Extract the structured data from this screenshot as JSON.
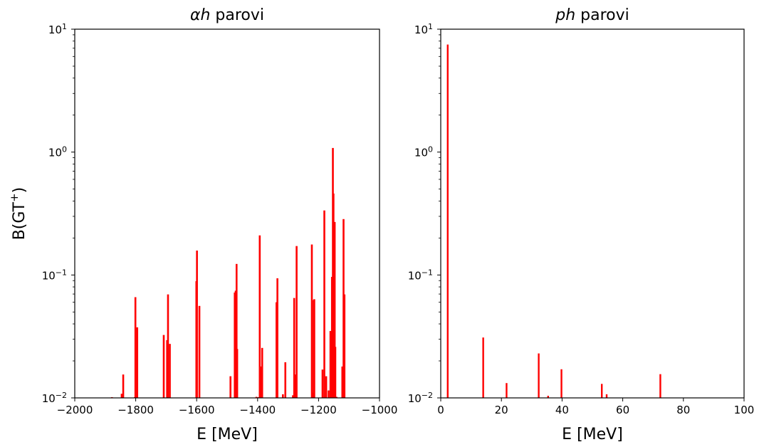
{
  "figure": {
    "ylabel": "B(GT$^+$)"
  },
  "chart_data": [
    {
      "type": "bar",
      "title_prefix": "αh",
      "title_suffix": " parovi",
      "xlabel": "E [MeV]",
      "ylabel": "B(GT$^+$)",
      "xlim": [
        -2000,
        -1000
      ],
      "ylim": [
        0.01,
        10
      ],
      "yscale": "log",
      "grid": false,
      "color": "#ff0000",
      "x_ticks": [
        -2000,
        -1800,
        -1600,
        -1400,
        -1200,
        -1000
      ],
      "x_tick_labels": [
        "−2000",
        "−1800",
        "−1600",
        "−1400",
        "−1200",
        "−1000"
      ],
      "y_ticks": [
        0.01,
        0.1,
        1,
        10
      ],
      "y_tick_labels": [
        {
          "base": "10",
          "exp": "−2"
        },
        {
          "base": "10",
          "exp": "−1"
        },
        {
          "base": "10",
          "exp": "0"
        },
        {
          "base": "10",
          "exp": "1"
        }
      ],
      "x": [
        -1878,
        -1846,
        -1841,
        -1803,
        -1801,
        -1795,
        -1708,
        -1697,
        -1694,
        -1688,
        -1601,
        -1599,
        -1591,
        -1489,
        -1475,
        -1472,
        -1469,
        -1467,
        -1404,
        -1397,
        -1393,
        -1389,
        -1385,
        -1338,
        -1335,
        -1317,
        -1309,
        -1284,
        -1280,
        -1277,
        -1272,
        -1222,
        -1218,
        -1216,
        -1214,
        -1187,
        -1181,
        -1175,
        -1167,
        -1161,
        -1159,
        -1156,
        -1153,
        -1151,
        -1149,
        -1147,
        -1145,
        -1141,
        -1122,
        -1118,
        -1115
      ],
      "values": [
        0.0101,
        0.0108,
        0.0155,
        0.0101,
        0.066,
        0.0375,
        0.0325,
        0.0295,
        0.0695,
        0.0275,
        0.089,
        0.158,
        0.056,
        0.015,
        0.072,
        0.0745,
        0.123,
        0.025,
        0.0102,
        0.01,
        0.21,
        0.018,
        0.0255,
        0.06,
        0.094,
        0.0107,
        0.0195,
        0.0105,
        0.065,
        0.0155,
        0.172,
        0.177,
        0.011,
        0.0625,
        0.0635,
        0.017,
        0.335,
        0.015,
        0.0115,
        0.035,
        0.0103,
        0.0965,
        1.08,
        0.46,
        0.1,
        0.27,
        0.026,
        0.0102,
        0.018,
        0.285,
        0.0695
      ]
    },
    {
      "type": "bar",
      "title_prefix": "ph",
      "title_suffix": " parovi",
      "xlabel": "E [MeV]",
      "xlim": [
        0,
        100
      ],
      "ylim": [
        0.01,
        10
      ],
      "yscale": "log",
      "grid": false,
      "color": "#ff0000",
      "x_ticks": [
        0,
        20,
        40,
        60,
        80,
        100
      ],
      "x_tick_labels": [
        "0",
        "20",
        "40",
        "60",
        "80",
        "100"
      ],
      "y_ticks": [
        0.01,
        0.1,
        1,
        10
      ],
      "y_tick_labels": [
        {
          "base": "10",
          "exp": "−2"
        },
        {
          "base": "10",
          "exp": "−1"
        },
        {
          "base": "10",
          "exp": "0"
        },
        {
          "base": "10",
          "exp": "1"
        }
      ],
      "x": [
        2.3,
        14.0,
        21.7,
        32.3,
        35.4,
        39.8,
        53.1,
        54.7,
        72.4
      ],
      "values": [
        7.5,
        0.031,
        0.0132,
        0.023,
        0.0104,
        0.0171,
        0.013,
        0.0107,
        0.0156
      ]
    }
  ]
}
